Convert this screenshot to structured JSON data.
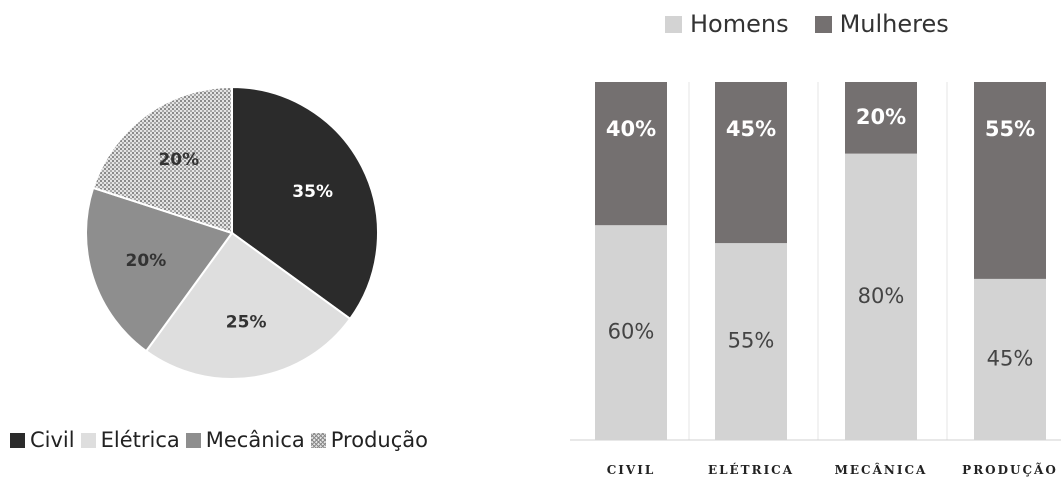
{
  "chart_data": [
    {
      "type": "pie",
      "categories": [
        "Civil",
        "Elétrica",
        "Mecânica",
        "Produção"
      ],
      "values": [
        35,
        25,
        20,
        20
      ],
      "labels": [
        "35%",
        "25%",
        "20%",
        "20%"
      ],
      "colors": [
        "#2b2b2b",
        "#dedede",
        "#8e8e8e",
        "pattern"
      ],
      "legend_position": "bottom"
    },
    {
      "type": "bar",
      "stacked": true,
      "categories": [
        "CIVIL",
        "ELÉTRICA",
        "MECÂNICA",
        "PRODUÇÃO"
      ],
      "series": [
        {
          "name": "Homens",
          "values": [
            60,
            55,
            80,
            45
          ],
          "labels": [
            "60%",
            "55%",
            "80%",
            "45%"
          ],
          "color": "#d3d3d3"
        },
        {
          "name": "Mulheres",
          "values": [
            40,
            45,
            20,
            55
          ],
          "labels": [
            "40%",
            "45%",
            "20%",
            "55%"
          ],
          "color": "#747070"
        }
      ],
      "ylim": [
        0,
        100
      ],
      "legend_position": "top"
    }
  ]
}
